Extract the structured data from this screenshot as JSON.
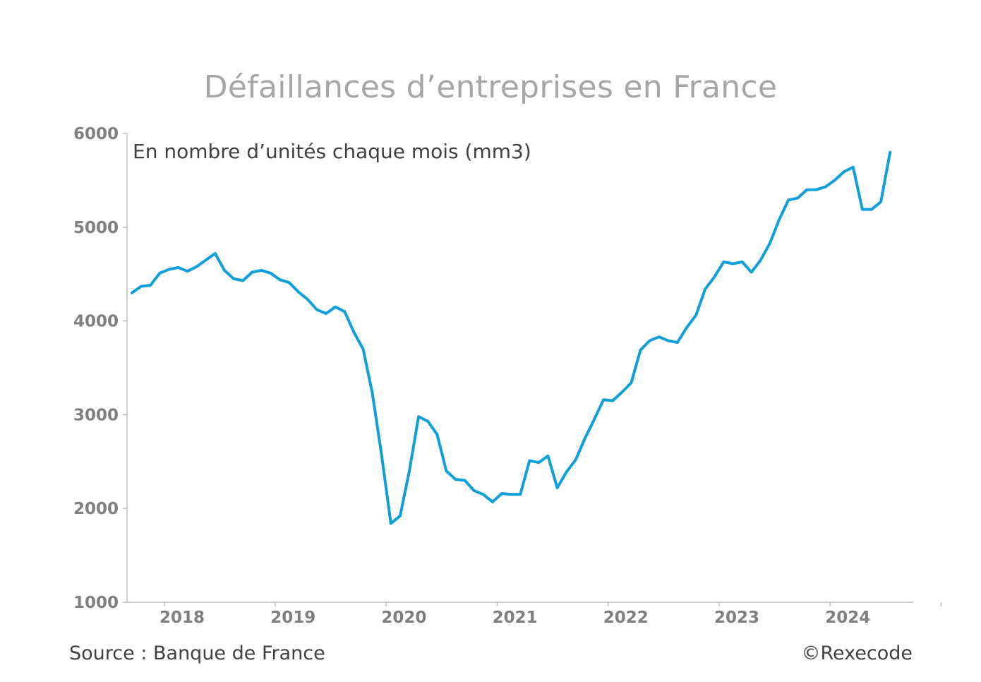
{
  "title": "Défaillances d’entreprises en France",
  "source": "Source : Banque de France",
  "copyright": "©Rexecode",
  "chart_data": {
    "type": "line",
    "title": "Défaillances d’entreprises en France",
    "subtitle": "En nombre d’unités chaque mois (mm3)",
    "xlabel": "",
    "ylabel": "",
    "ylim": [
      1000,
      6000
    ],
    "yticks": [
      "1000",
      "2000",
      "3000",
      "4000",
      "5000",
      "6000"
    ],
    "xticks": [
      "2018",
      "2019",
      "2020",
      "2021",
      "2022",
      "2023",
      "2024"
    ],
    "x_start": "2017-08",
    "frequency": "monthly",
    "legend": "none",
    "grid": false,
    "colors": {
      "series": "#0f9fdb",
      "axis": "#bfbfbf",
      "tick_label": "#7f7f7f"
    },
    "series": [
      {
        "values": [
          4300,
          4370,
          4380,
          4510,
          4550,
          4570,
          4530,
          4580,
          4650,
          4720,
          4540,
          4450,
          4430,
          4520,
          4540,
          4510,
          4440,
          4410,
          4310,
          4230,
          4120,
          4080,
          4150,
          4100,
          3880,
          3700,
          3230,
          2570,
          1840,
          1920,
          2400,
          2980,
          2930,
          2790,
          2400,
          2310,
          2300,
          2190,
          2150,
          2070,
          2160,
          2150,
          2150,
          2510,
          2490,
          2560,
          2220,
          2390,
          2520,
          2750,
          2950,
          3160,
          3150,
          3240,
          3340,
          3690,
          3790,
          3830,
          3790,
          3770,
          3930,
          4060,
          4340,
          4470,
          4630,
          4610,
          4630,
          4520,
          4650,
          4830,
          5080,
          5290,
          5310,
          5400,
          5400,
          5430,
          5500,
          5590,
          5640,
          5190,
          5190,
          5270,
          5800
        ]
      }
    ]
  }
}
